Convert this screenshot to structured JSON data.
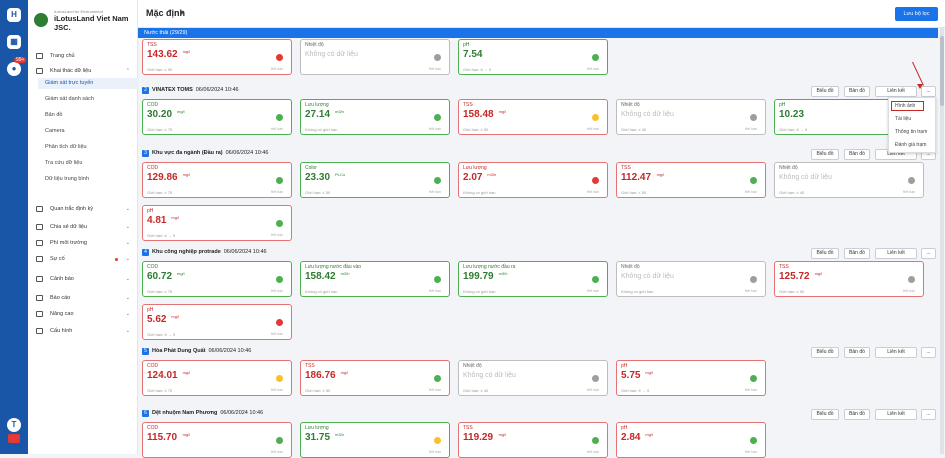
{
  "app": {
    "company_tagline": "iLotusLand for Environment",
    "company_name": "iLotusLand Viet Nam JSC.",
    "page_title": "Mặc định",
    "save_filter": "Lưu bộ lọc",
    "strip": "Nước thải (29/29)",
    "badge": "99+"
  },
  "menu": {
    "items": [
      "Trang chủ",
      "Khai thác dữ liệu",
      "Quan trắc định kỳ",
      "Chia sẻ dữ liệu",
      "Phí môi trường",
      "Sự cố",
      "Cảnh báo",
      "Báo cáo",
      "Nâng cao",
      "Cấu hình"
    ],
    "subitems": [
      "Giám sát trực tuyến",
      "Giám sát danh sách",
      "Bản đồ",
      "Camera",
      "Phân tích dữ liệu",
      "Tra cứu dữ liệu",
      "Dữ liệu trung bình"
    ]
  },
  "icons": {
    "home": "home-icon",
    "data": "database-icon",
    "avatar": "avatar-icon",
    "youtube": "youtube-icon"
  },
  "colors": {
    "good": "#4caf50",
    "exceed": "#e53935",
    "warn": "#fbc02d",
    "offline": "#9e9e9e",
    "accent": "#1a73e8"
  },
  "actions": {
    "chart": "Biểu đồ",
    "map": "Bản đồ",
    "link": "Liên kết",
    "more": "...",
    "link_chevron": "⌄"
  },
  "dropdown": {
    "items": [
      "Hình ảnh",
      "Tài liệu",
      "Thông tin trạm",
      "Đánh giá trạm"
    ]
  },
  "common": {
    "nodata": "Không có dữ liệu",
    "nolimit": "Không có giới hạn",
    "ex": "Hết hạn"
  },
  "top": [
    {
      "name": "TSS",
      "value": "143.62",
      "unit": "mg/l",
      "limit": "Giới hạn: ≤ 50",
      "status": "exceed"
    },
    {
      "name": "Nhiệt độ",
      "value": "",
      "unit": "",
      "limit": "",
      "status": "offline"
    },
    {
      "name": "pH",
      "value": "7.54",
      "unit": "",
      "limit": "Giới hạn: 6 → 9",
      "status": "good"
    }
  ],
  "stations": [
    {
      "idx": "2",
      "name": "VINATEX TOMS",
      "time": "06/06/2024 10:46",
      "rows": [
        [
          {
            "name": "COD",
            "value": "30.20",
            "unit": "mg/l",
            "limit": "Giới hạn: ≤ 75",
            "status": "good"
          },
          {
            "name": "Lưu lượng",
            "value": "27.14",
            "unit": "m3/h",
            "limit": "Không có giới hạn",
            "status": "good"
          },
          {
            "name": "TSS",
            "value": "158.48",
            "unit": "mg/l",
            "limit": "Giới hạn: ≤ 50",
            "status": "warn"
          },
          {
            "name": "Nhiệt độ",
            "value": "",
            "unit": "",
            "limit": "Giới hạn: ≤ 40",
            "status": "offline"
          },
          {
            "name": "pH",
            "value": "10.23",
            "unit": "",
            "limit": "Giới hạn: 6 → 9",
            "status": "good"
          }
        ]
      ]
    },
    {
      "idx": "3",
      "name": "Khu vực đa ngành (Đầu ra)",
      "time": "06/06/2024 10:46",
      "rows": [
        [
          {
            "name": "COD",
            "value": "129.86",
            "unit": "mg/l",
            "limit": "Giới hạn: ≤ 75",
            "status": "good"
          },
          {
            "name": "Color",
            "value": "23.30",
            "unit": "Pt-Co",
            "limit": "Giới hạn: ≤ 50",
            "status": "good"
          },
          {
            "name": "Lưu lượng",
            "value": "2.07",
            "unit": "m3/h",
            "limit": "Không có giới hạn",
            "status": "exceed"
          },
          {
            "name": "TSS",
            "value": "112.47",
            "unit": "mg/l",
            "limit": "Giới hạn: ≤ 50",
            "status": "good"
          },
          {
            "name": "Nhiệt độ",
            "value": "",
            "unit": "",
            "limit": "Giới hạn: ≤ 40",
            "status": "offline"
          }
        ],
        [
          {
            "name": "pH",
            "value": "4.81",
            "unit": "mg/l",
            "limit": "Giới hạn: 6 → 9",
            "status": "good"
          }
        ]
      ]
    },
    {
      "idx": "4",
      "name": "Khu công nghiệp protrade",
      "time": "06/06/2024 10:46",
      "rows": [
        [
          {
            "name": "COD",
            "value": "60.72",
            "unit": "mg/l",
            "limit": "Giới hạn: ≤ 75",
            "status": "good"
          },
          {
            "name": "Lưu lượng nước đầu vào",
            "value": "158.42",
            "unit": "m3/h",
            "limit": "Không có giới hạn",
            "status": "good"
          },
          {
            "name": "Lưu lượng nước đầu ra",
            "value": "199.79",
            "unit": "m3/h",
            "limit": "Không có giới hạn",
            "status": "good"
          },
          {
            "name": "Nhiệt độ",
            "value": "",
            "unit": "",
            "limit": "Không có giới hạn",
            "status": "offline"
          },
          {
            "name": "TSS",
            "value": "125.72",
            "unit": "mg/l",
            "limit": "Giới hạn: ≤ 50",
            "status": "offline"
          }
        ],
        [
          {
            "name": "pH",
            "value": "5.62",
            "unit": "mg/l",
            "limit": "Giới hạn: 6 → 9",
            "status": "exceed"
          }
        ]
      ]
    },
    {
      "idx": "5",
      "name": "Hòa Phát Dung Quất",
      "time": "06/06/2024 10:46",
      "rows": [
        [
          {
            "name": "COD",
            "value": "124.01",
            "unit": "mg/l",
            "limit": "Giới hạn: ≤ 75",
            "status": "warn"
          },
          {
            "name": "TSS",
            "value": "186.76",
            "unit": "mg/l",
            "limit": "Giới hạn: ≤ 50",
            "status": "good"
          },
          {
            "name": "Nhiệt độ",
            "value": "",
            "unit": "",
            "limit": "Giới hạn: ≤ 40",
            "status": "offline"
          },
          {
            "name": "pH",
            "value": "5.75",
            "unit": "mg/l",
            "limit": "Giới hạn: 6 → 9",
            "status": "good"
          }
        ]
      ]
    },
    {
      "idx": "6",
      "name": "Dệt nhuộm Nam Phương",
      "time": "06/06/2024 10:46",
      "rows": [
        [
          {
            "name": "COD",
            "value": "115.70",
            "unit": "mg/l",
            "limit": "",
            "status": "good"
          },
          {
            "name": "Lưu lượng",
            "value": "31.75",
            "unit": "m3/h",
            "limit": "",
            "status": "warn"
          },
          {
            "name": "TSS",
            "value": "119.29",
            "unit": "mg/l",
            "limit": "",
            "status": "good"
          },
          {
            "name": "pH",
            "value": "2.84",
            "unit": "mg/l",
            "limit": "",
            "status": "good"
          }
        ]
      ]
    }
  ]
}
